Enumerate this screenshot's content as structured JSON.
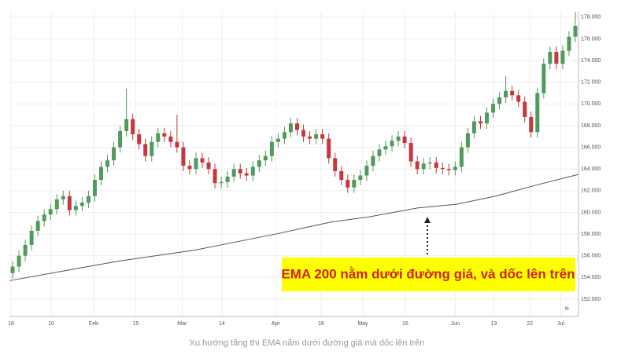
{
  "chart_data": {
    "type": "candlestick",
    "caption": "Xu hướng tăng thì EMA nằm dưới đường giá mà dốc lên trên",
    "annotation": "EMA 200 nằm dưới đường giá, và dốc lên trên",
    "up_color": "#4f9a5c",
    "down_color": "#c8363d",
    "grid": true,
    "xlim": [
      -0.5,
      89.5
    ],
    "ylim": [
      150.4,
      178.5
    ],
    "xticks": [
      {
        "value": -0.25,
        "label": "18"
      },
      {
        "value": 6.1,
        "label": "10"
      },
      {
        "value": 12.8,
        "label": "Feb"
      },
      {
        "value": 19.5,
        "label": "15"
      },
      {
        "value": 26.8,
        "label": "Mar"
      },
      {
        "value": 33.1,
        "label": "14"
      },
      {
        "value": 41.6,
        "label": "Apr"
      },
      {
        "value": 48.8,
        "label": "16"
      },
      {
        "value": 55.4,
        "label": "May"
      },
      {
        "value": 62.1,
        "label": "16"
      },
      {
        "value": 70,
        "label": "Jun"
      },
      {
        "value": 76.1,
        "label": "13"
      },
      {
        "value": 81.8,
        "label": "22"
      },
      {
        "value": 86.7,
        "label": "Jul"
      }
    ],
    "yticks": [
      {
        "value": 152,
        "label": "152.000"
      },
      {
        "value": 154,
        "label": "154.000"
      },
      {
        "value": 156,
        "label": "156.000"
      },
      {
        "value": 158,
        "label": "158.000"
      },
      {
        "value": 160,
        "label": "160.000"
      },
      {
        "value": 162,
        "label": "162.000"
      },
      {
        "value": 164,
        "label": "164.000"
      },
      {
        "value": 166,
        "label": "166.000"
      },
      {
        "value": 168,
        "label": "168.000"
      },
      {
        "value": 170,
        "label": "170.000"
      },
      {
        "value": 172,
        "label": "172.000"
      },
      {
        "value": 174,
        "label": "174.000"
      },
      {
        "value": 176,
        "label": "176.000"
      },
      {
        "value": 178,
        "label": "178.000"
      }
    ],
    "open": [
      154.4,
      155,
      156,
      157,
      158.3,
      159.2,
      159.8,
      160.3,
      161.2,
      161.5,
      160.2,
      160.6,
      160.9,
      161.5,
      163,
      164.2,
      164.8,
      166,
      167.5,
      168.6,
      167.2,
      166.3,
      165.2,
      166.5,
      167.3,
      167,
      166.5,
      166,
      164.3,
      164,
      165,
      164.6,
      164,
      162.7,
      162.8,
      163.3,
      164,
      163.6,
      163.4,
      164.2,
      164.8,
      165.2,
      166.5,
      166.8,
      167.4,
      168.2,
      167.6,
      167,
      166.8,
      167.2,
      166.8,
      165,
      163.8,
      163,
      162.3,
      163,
      163.4,
      164.3,
      165.2,
      165.8,
      166.1,
      166.6,
      167,
      166.4,
      164.7,
      164,
      164.5,
      164.6,
      164.1,
      164,
      163.9,
      164.2,
      166,
      167.3,
      168.4,
      168.2,
      169.2,
      170,
      170.6,
      171.2,
      170.8,
      170.2,
      168.8,
      167.4,
      171,
      173.7,
      174.8,
      173.7,
      174.9,
      176.2
    ],
    "high": [
      155.5,
      156.5,
      157.5,
      158.8,
      159.7,
      160.3,
      160.8,
      161.7,
      162,
      162,
      161.1,
      161.4,
      162,
      163.5,
      164.7,
      165.3,
      166.5,
      168,
      171.4,
      169.1,
      167.7,
      166.8,
      167,
      167.8,
      167.8,
      167.5,
      169,
      166.5,
      164.8,
      165.5,
      165.5,
      165.1,
      164.5,
      163.3,
      163.8,
      164.5,
      164.5,
      164.1,
      164.7,
      165.3,
      165.7,
      167,
      167.3,
      167.9,
      168.7,
      168.7,
      168.1,
      167.5,
      167.7,
      167.7,
      167.3,
      165.5,
      164.3,
      163.5,
      163.5,
      163.9,
      164.8,
      165.7,
      166.3,
      166.6,
      167.1,
      167.5,
      167.5,
      166.9,
      165.2,
      165,
      165.1,
      165.1,
      164.6,
      164.5,
      164.7,
      166.5,
      167.8,
      168.9,
      168.9,
      169.7,
      170.5,
      171.1,
      172.6,
      171.7,
      171.3,
      170.7,
      169.3,
      171.5,
      174.2,
      175.3,
      175.3,
      175.4,
      176.7,
      178.5
    ],
    "low": [
      153.9,
      154.5,
      155.5,
      156.5,
      157.8,
      158.7,
      159.3,
      159.8,
      160.7,
      159.7,
      159.7,
      160.1,
      160.4,
      161,
      162.5,
      163.7,
      164.3,
      165.5,
      167,
      166.7,
      165.8,
      164.7,
      164.7,
      166,
      166.5,
      166,
      165.5,
      163.8,
      163.5,
      163.5,
      164.1,
      163.5,
      162.2,
      162.2,
      162.3,
      162.8,
      163.1,
      162.9,
      162.9,
      163.7,
      164.3,
      164.7,
      166,
      166.3,
      166.9,
      167.1,
      166.5,
      166.3,
      166.3,
      166.3,
      164.5,
      163.3,
      162.5,
      161.8,
      161.8,
      162.5,
      162.9,
      163.8,
      164.7,
      165.3,
      165.6,
      166.1,
      165.9,
      164.2,
      163.5,
      163.5,
      164,
      163.6,
      163.5,
      163.4,
      163.4,
      163.7,
      165.5,
      166.8,
      167.7,
      167.7,
      168.7,
      169.5,
      170.1,
      170.3,
      169.7,
      168.3,
      166.9,
      166.9,
      170.5,
      173.2,
      173.2,
      173.2,
      174.4,
      175.7
    ],
    "close": [
      155,
      156,
      157,
      158.3,
      159.2,
      159.8,
      160.3,
      161.2,
      161.5,
      160.2,
      160.6,
      160.9,
      161.5,
      163,
      164.2,
      164.8,
      166,
      167.5,
      168.6,
      167.2,
      166.3,
      165.2,
      166.5,
      167.3,
      167,
      166.5,
      166,
      164.3,
      164,
      165,
      164.6,
      164,
      162.7,
      162.8,
      163.3,
      164,
      163.6,
      163.4,
      164.2,
      164.8,
      165.2,
      166.5,
      166.8,
      167.4,
      168.2,
      167.6,
      167,
      166.8,
      167.2,
      166.8,
      165,
      163.8,
      163,
      162.3,
      163,
      163.4,
      164.3,
      165.2,
      165.8,
      166.1,
      166.6,
      167,
      166.4,
      164.7,
      164,
      164.5,
      164.6,
      164.1,
      164,
      163.9,
      164.2,
      166,
      167.3,
      168.4,
      168.2,
      169.2,
      170,
      170.6,
      171.2,
      170.8,
      170.2,
      168.8,
      167.4,
      171,
      173.7,
      174.8,
      173.7,
      174.9,
      176.2,
      177.2
    ],
    "ema": {
      "color": "#555555",
      "x": [
        -0.5,
        16.7,
        29.1,
        41.6,
        50.3,
        56.5,
        64,
        70.2,
        76.4,
        82.7,
        89.5
      ],
      "values": [
        153.7,
        155.5,
        156.55,
        158,
        159.1,
        159.6,
        160.4,
        160.75,
        161.5,
        162.5,
        163.5
      ]
    }
  }
}
